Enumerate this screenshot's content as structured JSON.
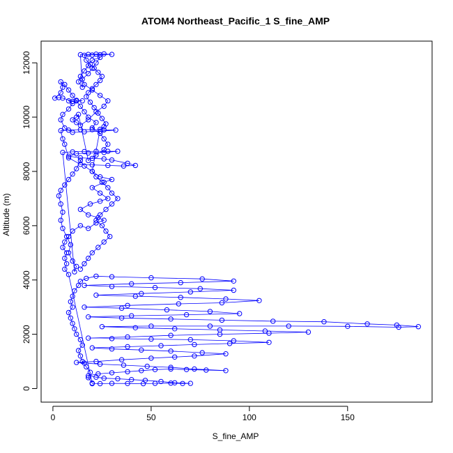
{
  "chart_data": {
    "type": "line",
    "title": "ATOM4 Northeast_Pacific_1 S_fine_AMP",
    "xlabel": "S_fine_AMP",
    "ylabel": "Altitude (m)",
    "xlim": [
      -6,
      193
    ],
    "ylim": [
      -500,
      12800
    ],
    "x_ticks": [
      0,
      50,
      100,
      150
    ],
    "y_ticks": [
      0,
      2000,
      4000,
      6000,
      8000,
      10000,
      12000
    ],
    "grid": false,
    "legend": "none",
    "marker": "open-circle",
    "series_color": "#0000ff",
    "series": [
      {
        "name": "",
        "points": [
          [
            20,
            180
          ],
          [
            24,
            180
          ],
          [
            30,
            190
          ],
          [
            38,
            185
          ],
          [
            46,
            180
          ],
          [
            52,
            190
          ],
          [
            60,
            200
          ],
          [
            66,
            185
          ],
          [
            70,
            190
          ],
          [
            62,
            210
          ],
          [
            55,
            260
          ],
          [
            47,
            300
          ],
          [
            40,
            330
          ],
          [
            33,
            360
          ],
          [
            26,
            380
          ],
          [
            22,
            420
          ],
          [
            18,
            470
          ],
          [
            23,
            540
          ],
          [
            30,
            580
          ],
          [
            38,
            620
          ],
          [
            45,
            660
          ],
          [
            52,
            700
          ],
          [
            60,
            720
          ],
          [
            68,
            700
          ],
          [
            78,
            680
          ],
          [
            88,
            660
          ],
          [
            72,
            720
          ],
          [
            60,
            780
          ],
          [
            48,
            820
          ],
          [
            36,
            860
          ],
          [
            24,
            900
          ],
          [
            16,
            940
          ],
          [
            12,
            960
          ],
          [
            22,
            1000
          ],
          [
            35,
            1060
          ],
          [
            50,
            1120
          ],
          [
            62,
            1160
          ],
          [
            72,
            1200
          ],
          [
            88,
            1280
          ],
          [
            76,
            1320
          ],
          [
            60,
            1380
          ],
          [
            45,
            1420
          ],
          [
            30,
            1460
          ],
          [
            20,
            1500
          ],
          [
            38,
            1540
          ],
          [
            55,
            1580
          ],
          [
            72,
            1620
          ],
          [
            90,
            1660
          ],
          [
            110,
            1700
          ],
          [
            92,
            1760
          ],
          [
            70,
            1800
          ],
          [
            50,
            1820
          ],
          [
            30,
            1840
          ],
          [
            18,
            1860
          ],
          [
            38,
            1900
          ],
          [
            60,
            1960
          ],
          [
            85,
            2000
          ],
          [
            110,
            2040
          ],
          [
            130,
            2080
          ],
          [
            108,
            2120
          ],
          [
            85,
            2160
          ],
          [
            62,
            2200
          ],
          [
            42,
            2240
          ],
          [
            25,
            2280
          ],
          [
            50,
            2300
          ],
          [
            80,
            2300
          ],
          [
            120,
            2300
          ],
          [
            150,
            2290
          ],
          [
            176,
            2260
          ],
          [
            186,
            2280
          ],
          [
            175,
            2340
          ],
          [
            160,
            2380
          ],
          [
            138,
            2460
          ],
          [
            112,
            2480
          ],
          [
            86,
            2520
          ],
          [
            60,
            2560
          ],
          [
            35,
            2600
          ],
          [
            18,
            2640
          ],
          [
            40,
            2680
          ],
          [
            68,
            2720
          ],
          [
            95,
            2760
          ],
          [
            80,
            2840
          ],
          [
            58,
            2900
          ],
          [
            35,
            2960
          ],
          [
            16,
            3000
          ],
          [
            38,
            3060
          ],
          [
            64,
            3120
          ],
          [
            86,
            3160
          ],
          [
            105,
            3240
          ],
          [
            88,
            3300
          ],
          [
            65,
            3360
          ],
          [
            42,
            3400
          ],
          [
            22,
            3440
          ],
          [
            45,
            3500
          ],
          [
            70,
            3560
          ],
          [
            92,
            3620
          ],
          [
            75,
            3680
          ],
          [
            52,
            3720
          ],
          [
            30,
            3760
          ],
          [
            16,
            3800
          ],
          [
            40,
            3860
          ],
          [
            65,
            3900
          ],
          [
            92,
            3960
          ],
          [
            76,
            4040
          ],
          [
            50,
            4080
          ],
          [
            30,
            4120
          ],
          [
            22,
            4140
          ],
          [
            17,
            4060
          ],
          [
            14,
            3950
          ],
          [
            13,
            3800
          ],
          [
            11,
            3600
          ],
          [
            10,
            3400
          ],
          [
            9,
            3200
          ],
          [
            10,
            3000
          ],
          [
            8,
            2800
          ],
          [
            9,
            2600
          ],
          [
            10,
            2400
          ],
          [
            11,
            2200
          ],
          [
            12,
            2000
          ],
          [
            14,
            1800
          ],
          [
            15,
            1600
          ],
          [
            13,
            1400
          ],
          [
            14,
            1200
          ],
          [
            15,
            1000
          ],
          [
            17,
            800
          ],
          [
            19,
            600
          ],
          [
            18,
            400
          ],
          [
            20,
            200
          ],
          [
            8,
            4200
          ],
          [
            6,
            4400
          ],
          [
            7,
            4600
          ],
          [
            6,
            4800
          ],
          [
            7,
            5000
          ],
          [
            5,
            5200
          ],
          [
            6,
            5400
          ],
          [
            8,
            5600
          ],
          [
            10,
            5800
          ],
          [
            14,
            6000
          ],
          [
            18,
            5900
          ],
          [
            22,
            6100
          ],
          [
            26,
            6200
          ],
          [
            23,
            6300
          ],
          [
            18,
            6400
          ],
          [
            14,
            6600
          ],
          [
            19,
            6800
          ],
          [
            24,
            6900
          ],
          [
            28,
            7000
          ],
          [
            24,
            7200
          ],
          [
            20,
            7400
          ],
          [
            26,
            7600
          ],
          [
            30,
            7700
          ],
          [
            24,
            7800
          ],
          [
            20,
            8000
          ],
          [
            16,
            8200
          ],
          [
            14,
            8400
          ],
          [
            12,
            8100
          ],
          [
            10,
            7900
          ],
          [
            8,
            7700
          ],
          [
            6,
            7500
          ],
          [
            4,
            7300
          ],
          [
            3,
            7100
          ],
          [
            4,
            6800
          ],
          [
            5,
            6500
          ],
          [
            4,
            6200
          ],
          [
            5,
            5900
          ],
          [
            7,
            5600
          ],
          [
            9,
            5300
          ],
          [
            8,
            5000
          ],
          [
            10,
            4700
          ],
          [
            12,
            4500
          ],
          [
            11,
            4300
          ],
          [
            5,
            8700
          ],
          [
            10,
            8720
          ],
          [
            16,
            8730
          ],
          [
            22,
            8740
          ],
          [
            28,
            8740
          ],
          [
            33,
            8740
          ],
          [
            26,
            8700
          ],
          [
            18,
            8680
          ],
          [
            12,
            8650
          ],
          [
            8,
            8560
          ],
          [
            14,
            8500
          ],
          [
            20,
            8480
          ],
          [
            26,
            8460
          ],
          [
            30,
            8420
          ],
          [
            38,
            8300
          ],
          [
            42,
            8220
          ],
          [
            36,
            8200
          ],
          [
            28,
            8220
          ],
          [
            20,
            8240
          ],
          [
            14,
            8260
          ],
          [
            8,
            8500
          ],
          [
            6,
            9000
          ],
          [
            5,
            9200
          ],
          [
            4,
            9500
          ],
          [
            8,
            9520
          ],
          [
            14,
            9540
          ],
          [
            20,
            9540
          ],
          [
            26,
            9530
          ],
          [
            32,
            9520
          ],
          [
            24,
            9480
          ],
          [
            16,
            9460
          ],
          [
            10,
            9440
          ],
          [
            6,
            9600
          ],
          [
            4,
            9900
          ],
          [
            5,
            10100
          ],
          [
            8,
            10300
          ],
          [
            10,
            10500
          ],
          [
            8,
            10600
          ],
          [
            12,
            10620
          ],
          [
            15,
            10600
          ],
          [
            10,
            10580
          ],
          [
            5,
            10700
          ],
          [
            3,
            10720
          ],
          [
            1,
            10700
          ],
          [
            4,
            10900
          ],
          [
            5,
            11100
          ],
          [
            4,
            11300
          ],
          [
            6,
            11200
          ],
          [
            8,
            11000
          ],
          [
            10,
            10800
          ],
          [
            12,
            10600
          ],
          [
            14,
            10400
          ],
          [
            16,
            10200
          ],
          [
            18,
            10000
          ],
          [
            22,
            9800
          ],
          [
            20,
            9600
          ],
          [
            24,
            9400
          ],
          [
            26,
            9200
          ],
          [
            28,
            9000
          ],
          [
            26,
            8800
          ],
          [
            22,
            8600
          ],
          [
            18,
            8400
          ],
          [
            13,
            10100
          ],
          [
            12,
            10000
          ],
          [
            10,
            9900
          ],
          [
            12,
            9800
          ],
          [
            14,
            9700
          ],
          [
            18,
            9900
          ],
          [
            22,
            10200
          ],
          [
            26,
            10400
          ],
          [
            28,
            10600
          ],
          [
            24,
            10800
          ],
          [
            20,
            11000
          ],
          [
            16,
            11200
          ],
          [
            15,
            11400
          ],
          [
            18,
            11600
          ],
          [
            20,
            11800
          ],
          [
            22,
            12000
          ],
          [
            24,
            12200
          ],
          [
            20,
            12100
          ],
          [
            18,
            11900
          ],
          [
            16,
            11700
          ],
          [
            14,
            11500
          ],
          [
            13,
            11300
          ],
          [
            15,
            11100
          ],
          [
            14,
            12300
          ],
          [
            18,
            12310
          ],
          [
            22,
            12320
          ],
          [
            26,
            12330
          ],
          [
            30,
            12310
          ],
          [
            24,
            12300
          ],
          [
            20,
            12290
          ],
          [
            16,
            12280
          ],
          [
            17,
            12100
          ],
          [
            19,
            11950
          ],
          [
            21,
            11800
          ],
          [
            23,
            11650
          ],
          [
            25,
            11500
          ],
          [
            24,
            11350
          ],
          [
            22,
            11200
          ],
          [
            20,
            11050
          ],
          [
            18,
            10900
          ],
          [
            17,
            10750
          ],
          [
            19,
            10550
          ],
          [
            21,
            10350
          ],
          [
            23,
            10150
          ],
          [
            25,
            9950
          ],
          [
            27,
            9750
          ],
          [
            26,
            9650
          ],
          [
            24,
            9550
          ],
          [
            20,
            8000
          ],
          [
            22,
            7800
          ],
          [
            25,
            7600
          ],
          [
            28,
            7400
          ],
          [
            30,
            7200
          ],
          [
            33,
            7000
          ],
          [
            30,
            6800
          ],
          [
            27,
            6600
          ],
          [
            24,
            6400
          ],
          [
            22,
            6200
          ],
          [
            25,
            6000
          ],
          [
            27,
            5800
          ],
          [
            29,
            5600
          ],
          [
            26,
            5400
          ],
          [
            23,
            5200
          ],
          [
            20,
            5000
          ],
          [
            18,
            4800
          ],
          [
            16,
            4600
          ],
          [
            14,
            4400
          ]
        ]
      }
    ]
  }
}
